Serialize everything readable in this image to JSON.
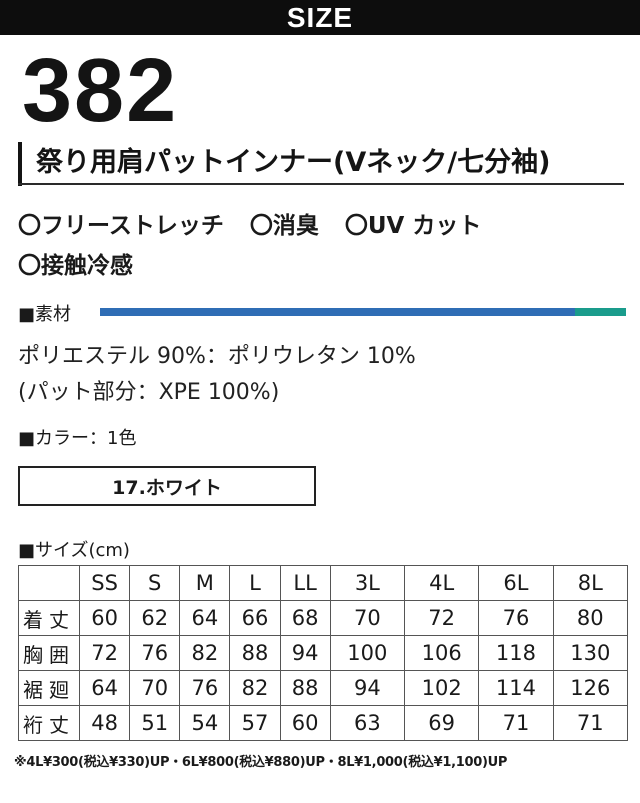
{
  "header": {
    "label": "SIZE"
  },
  "product": {
    "model_number": "382",
    "title": "祭り用肩パットインナー(Vネック/七分袖)"
  },
  "features": [
    [
      "〇フリーストレッチ",
      "〇消臭",
      "〇UV カット"
    ],
    [
      "〇接触冷感"
    ]
  ],
  "material": {
    "label": "■素材",
    "lines": [
      "ポリエステル 90%：ポリウレタン 10%",
      "(パット部分：XPE 100%)"
    ],
    "bar_colors": {
      "primary": "#2f6db5",
      "secondary": "#1a9c8c"
    }
  },
  "colors": {
    "label": "■カラー：1色",
    "items": [
      "17.ホワイト"
    ]
  },
  "size_table": {
    "label": "■サイズ(cm)",
    "columns": [
      "SS",
      "S",
      "M",
      "L",
      "LL",
      "3L",
      "4L",
      "6L",
      "8L"
    ],
    "rows": [
      {
        "name": "着丈",
        "values": [
          "60",
          "62",
          "64",
          "66",
          "68",
          "70",
          "72",
          "76",
          "80"
        ]
      },
      {
        "name": "胸囲",
        "values": [
          "72",
          "76",
          "82",
          "88",
          "94",
          "100",
          "106",
          "118",
          "130"
        ]
      },
      {
        "name": "裾廻",
        "values": [
          "64",
          "70",
          "76",
          "82",
          "88",
          "94",
          "102",
          "114",
          "126"
        ]
      },
      {
        "name": "裄丈",
        "values": [
          "48",
          "51",
          "54",
          "57",
          "60",
          "63",
          "69",
          "71",
          "71"
        ]
      }
    ]
  },
  "note": "※4L¥300(税込¥330)UP・6L¥800(税込¥880)UP・8L¥1,000(税込¥1,100)UP"
}
